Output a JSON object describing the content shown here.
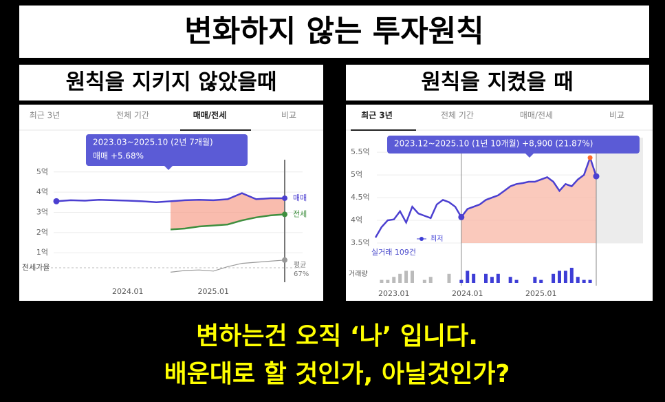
{
  "title": "변화하지 않는 투자원칙",
  "panels": [
    {
      "heading": "원칙을 지키지 않았을때"
    },
    {
      "heading": "원칙을 지켰을 때"
    }
  ],
  "footer": [
    "변하는건 오직 ‘나’ 입니다.",
    "배운대로 할 것인가, 아닐것인가?"
  ],
  "chart_data": [
    {
      "type": "line",
      "tabs": [
        "최근 3년",
        "전체 기간",
        "매매/전세",
        "비교"
      ],
      "selected_tab": 2,
      "tooltip": [
        "2023.03~2025.10 (2년 7개월)",
        "매매 +5.68%"
      ],
      "categories": [
        null,
        null,
        null,
        null,
        null,
        "2024.01",
        null,
        null,
        null,
        null,
        null,
        "2025.01",
        null,
        null,
        null,
        null,
        null
      ],
      "ylim": [
        0.7,
        5.3
      ],
      "yticks": [
        {
          "value": 5,
          "label": "5억"
        },
        {
          "value": 4,
          "label": "4억"
        },
        {
          "value": 3,
          "label": "3억"
        },
        {
          "value": 2,
          "label": "2억"
        },
        {
          "value": 1,
          "label": "1억"
        }
      ],
      "grid": true,
      "highlight_range": [
        8,
        16
      ],
      "y2_label": "전세가율",
      "y2lim": [
        40,
        90
      ],
      "annotation": [
        "평균",
        "67%"
      ],
      "series": [
        {
          "name": "매매",
          "color": "#4b3fd0",
          "values": [
            3.55,
            3.6,
            3.58,
            3.62,
            3.6,
            3.58,
            3.55,
            3.5,
            3.55,
            3.6,
            3.62,
            3.6,
            3.65,
            3.95,
            3.65,
            3.7,
            3.7
          ]
        },
        {
          "name": "전세",
          "color": "#3f8f3f",
          "values": [
            null,
            null,
            null,
            null,
            null,
            null,
            null,
            null,
            2.15,
            2.2,
            2.3,
            2.35,
            2.4,
            2.6,
            2.75,
            2.85,
            2.9
          ]
        },
        {
          "name": "전세가율",
          "color": "#999999",
          "axis": "y2",
          "values": [
            null,
            null,
            null,
            null,
            null,
            null,
            null,
            null,
            52,
            55,
            56,
            54,
            62,
            68,
            70,
            72,
            74
          ]
        }
      ]
    },
    {
      "type": "line",
      "tabs": [
        "최근 3년",
        "전체 기간",
        "매매/전세",
        "비교"
      ],
      "selected_tab": 0,
      "tooltip": [
        "2023.12~2025.10 (1년 10개월)  +8,900 (21.87%)"
      ],
      "categories": [
        null,
        null,
        null,
        "2023.01",
        null,
        null,
        null,
        null,
        null,
        null,
        null,
        null,
        null,
        null,
        null,
        "2024.01",
        null,
        null,
        null,
        null,
        null,
        null,
        null,
        null,
        null,
        null,
        null,
        "2025.01",
        null,
        null,
        null,
        null,
        null,
        null,
        null,
        null,
        null
      ],
      "ylim": [
        3.5,
        5.7
      ],
      "yticks": [
        {
          "value": 5.5,
          "label": "5.5억"
        },
        {
          "value": 5,
          "label": "5억"
        },
        {
          "value": 4.5,
          "label": "4.5억"
        },
        {
          "value": 4,
          "label": "4억"
        },
        {
          "value": 3.5,
          "label": "3.5억"
        }
      ],
      "grid": true,
      "highlight_range": [
        14,
        36
      ],
      "low_label": "최저",
      "trade_count": "실거래 109건",
      "peak_color": "#ff6a2a",
      "series": [
        {
          "name": "매매",
          "color": "#4b3fd0",
          "values": [
            3.62,
            3.85,
            4.0,
            4.02,
            4.2,
            3.95,
            4.3,
            4.15,
            4.1,
            4.05,
            4.35,
            4.45,
            4.4,
            4.3,
            4.07,
            4.25,
            4.3,
            4.35,
            4.45,
            4.5,
            4.55,
            4.65,
            4.75,
            4.8,
            4.82,
            4.85,
            4.85,
            4.9,
            4.95,
            4.85,
            4.65,
            4.8,
            4.75,
            4.9,
            5.0,
            5.38,
            4.97
          ]
        }
      ],
      "volume": {
        "label": "거래량",
        "lim": [
          0,
          5
        ],
        "colors": [
          "#bbbbbb",
          "#3d3dd6"
        ],
        "values": [
          0,
          1,
          1,
          2,
          3,
          4,
          4,
          0,
          1,
          2,
          0,
          0,
          3,
          0,
          1,
          4,
          3,
          0,
          3,
          2,
          3,
          0,
          2,
          1,
          0,
          0,
          2,
          1,
          0,
          3,
          4,
          4,
          5,
          2,
          1,
          1,
          0
        ]
      }
    }
  ]
}
